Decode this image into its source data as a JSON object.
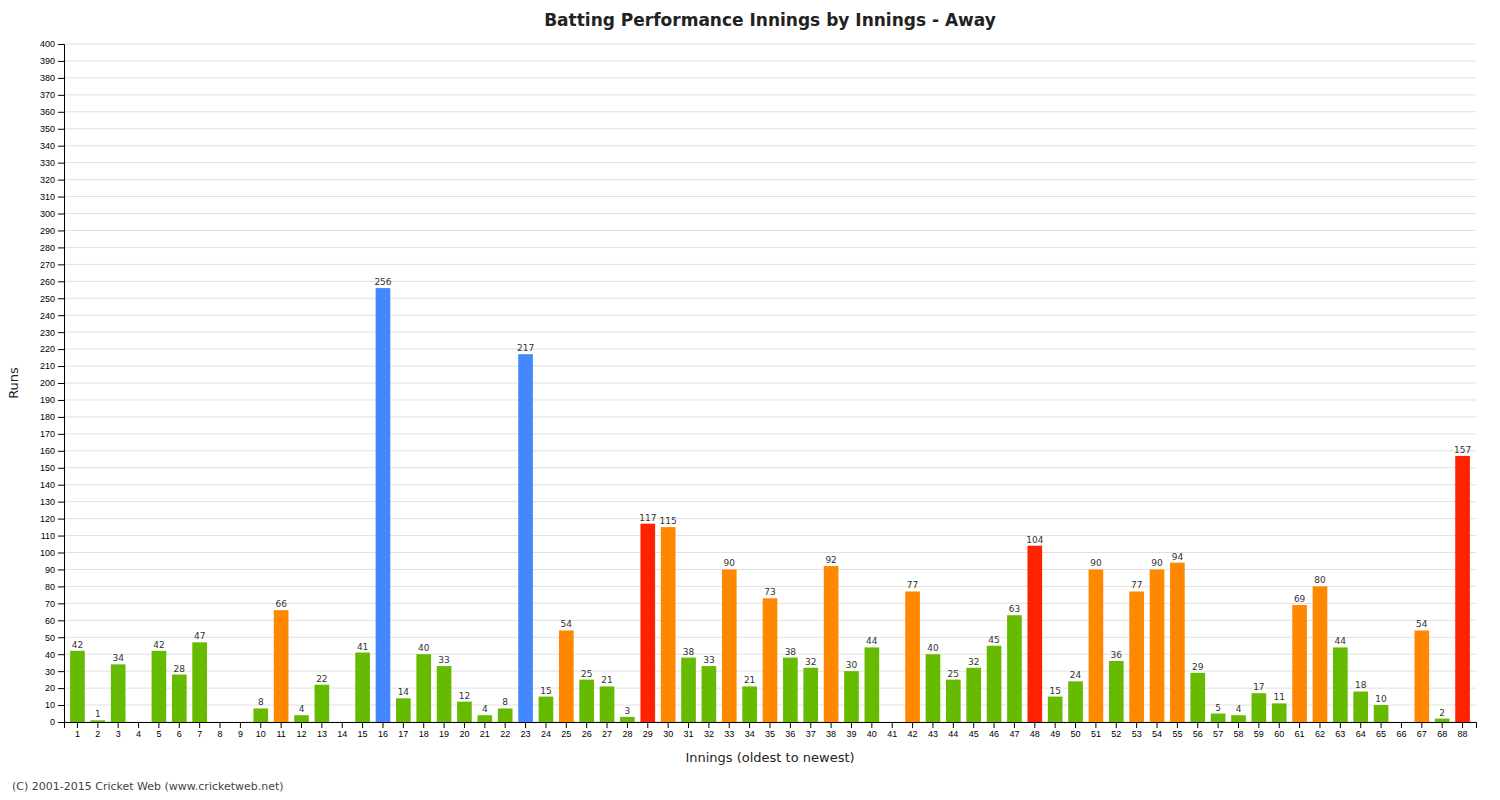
{
  "chart_data": {
    "type": "bar",
    "title": "Batting Performance Innings by Innings - Away",
    "x_label": "Innings (oldest to newest)",
    "y_label": "Runs",
    "footer": "(C) 2001-2015 Cricket Web (www.cricketweb.net)",
    "categories": [
      "1",
      "2",
      "3",
      "4",
      "5",
      "6",
      "7",
      "8",
      "9",
      "10",
      "11",
      "12",
      "13",
      "14",
      "15",
      "16",
      "17",
      "18",
      "19",
      "20",
      "21",
      "22",
      "23",
      "24",
      "25",
      "26",
      "27",
      "28",
      "29",
      "30",
      "31",
      "32",
      "33",
      "34",
      "35",
      "36",
      "37",
      "38",
      "39",
      "40",
      "41",
      "42",
      "43",
      "44",
      "45",
      "46",
      "47",
      "48",
      "49",
      "50",
      "51",
      "52",
      "53",
      "54",
      "55",
      "56",
      "57",
      "58",
      "59",
      "60",
      "61",
      "62",
      "63",
      "64",
      "65",
      "66",
      "67",
      "68",
      "88"
    ],
    "values": [
      42,
      1,
      34,
      0,
      42,
      28,
      47,
      0,
      0,
      8,
      66,
      4,
      22,
      0,
      41,
      256,
      14,
      40,
      33,
      12,
      4,
      8,
      217,
      15,
      54,
      25,
      21,
      3,
      117,
      115,
      38,
      33,
      90,
      21,
      73,
      38,
      32,
      92,
      30,
      44,
      0,
      77,
      40,
      25,
      32,
      45,
      63,
      104,
      15,
      24,
      90,
      36,
      77,
      90,
      94,
      29,
      5,
      4,
      17,
      11,
      69,
      80,
      44,
      18,
      10,
      0,
      54,
      2,
      157
    ],
    "value_labels": [
      "42",
      "1",
      "34",
      null,
      "42",
      "28",
      "47",
      null,
      null,
      "8",
      "66",
      "4",
      "22",
      null,
      "41",
      "256",
      "14",
      "40",
      "33",
      "12",
      "4",
      "8",
      "217",
      "15",
      "54",
      "25",
      "21",
      "3",
      "117",
      "115",
      "38",
      "33",
      "90",
      "21",
      "73",
      "38",
      "32",
      "92",
      "30",
      "44",
      null,
      "77",
      "40",
      "25",
      "32",
      "45",
      "63",
      "104",
      "15",
      "24",
      "90",
      "36",
      "77",
      "90",
      "94",
      "29",
      "5",
      "4",
      "17",
      "11",
      "69",
      "80",
      "44",
      "18",
      "10",
      null,
      "54",
      "2",
      "157"
    ],
    "colors": [
      "#66bb00",
      "#66bb00",
      "#66bb00",
      "#66bb00",
      "#66bb00",
      "#66bb00",
      "#66bb00",
      "#66bb00",
      "#66bb00",
      "#66bb00",
      "#ff8800",
      "#66bb00",
      "#66bb00",
      "#66bb00",
      "#66bb00",
      "#4488ff",
      "#66bb00",
      "#66bb00",
      "#66bb00",
      "#66bb00",
      "#66bb00",
      "#66bb00",
      "#4488ff",
      "#66bb00",
      "#ff8800",
      "#66bb00",
      "#66bb00",
      "#66bb00",
      "#ff2200",
      "#ff8800",
      "#66bb00",
      "#66bb00",
      "#ff8800",
      "#66bb00",
      "#ff8800",
      "#66bb00",
      "#66bb00",
      "#ff8800",
      "#66bb00",
      "#66bb00",
      "#66bb00",
      "#ff8800",
      "#66bb00",
      "#66bb00",
      "#66bb00",
      "#66bb00",
      "#66bb00",
      "#ff2200",
      "#66bb00",
      "#66bb00",
      "#ff8800",
      "#66bb00",
      "#ff8800",
      "#ff8800",
      "#ff8800",
      "#66bb00",
      "#66bb00",
      "#66bb00",
      "#66bb00",
      "#66bb00",
      "#ff8800",
      "#ff8800",
      "#66bb00",
      "#66bb00",
      "#66bb00",
      "#66bb00",
      "#ff8800",
      "#66bb00",
      "#ff2200"
    ],
    "ylim": [
      0,
      400
    ],
    "yticks": [
      0,
      10,
      20,
      30,
      40,
      50,
      60,
      70,
      80,
      90,
      100,
      110,
      120,
      130,
      140,
      150,
      160,
      170,
      180,
      190,
      200,
      210,
      220,
      230,
      240,
      250,
      260,
      270,
      280,
      290,
      300,
      310,
      320,
      330,
      340,
      350,
      360,
      370,
      380,
      390,
      400
    ],
    "grid": true,
    "data_labels": true
  }
}
